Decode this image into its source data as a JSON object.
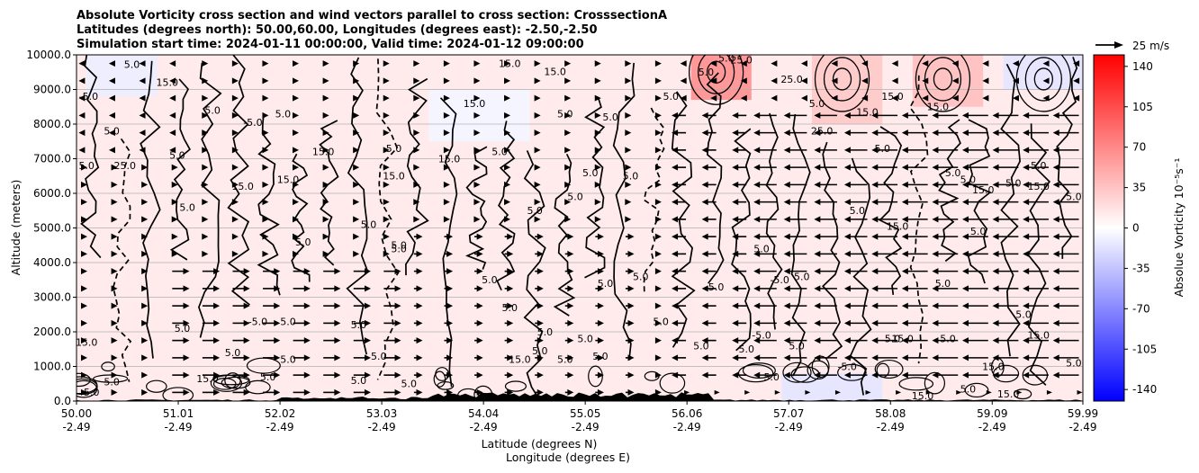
{
  "chart_data": {
    "type": "heatmap",
    "title_lines": [
      "Absolute Vorticity cross section and wind vectors parallel to cross section: CrosssectionA",
      "Latitudes (degrees north): 50.00,60.00, Longitudes (degrees east): -2.50,-2.50",
      "Simulation start time: 2024-01-11 00:00:00, Valid time: 2024-01-12 09:00:00"
    ],
    "ylabel": "Altitude (meters)",
    "xlabel_lines": [
      "Latitude (degrees N)",
      "Longitude (degrees E)"
    ],
    "ylim": [
      0,
      10000
    ],
    "y_ticks": [
      {
        "value": 0,
        "label": "0.0"
      },
      {
        "value": 1000,
        "label": "1000.0"
      },
      {
        "value": 2000,
        "label": "2000.0"
      },
      {
        "value": 3000,
        "label": "3000.0"
      },
      {
        "value": 4000,
        "label": "4000.0"
      },
      {
        "value": 5000,
        "label": "5000.0"
      },
      {
        "value": 6000,
        "label": "6000.0"
      },
      {
        "value": 7000,
        "label": "7000.0"
      },
      {
        "value": 8000,
        "label": "8000.0"
      },
      {
        "value": 9000,
        "label": "9000.0"
      },
      {
        "value": 10000,
        "label": "10000.0"
      }
    ],
    "xlim": [
      50.0,
      59.99
    ],
    "x_ticks": [
      {
        "value": 50.0,
        "lat": "50.00",
        "lon": "-2.49"
      },
      {
        "value": 51.01,
        "lat": "51.01",
        "lon": "-2.49"
      },
      {
        "value": 52.02,
        "lat": "52.02",
        "lon": "-2.49"
      },
      {
        "value": 53.03,
        "lat": "53.03",
        "lon": "-2.49"
      },
      {
        "value": 54.04,
        "lat": "54.04",
        "lon": "-2.49"
      },
      {
        "value": 55.05,
        "lat": "55.05",
        "lon": "-2.49"
      },
      {
        "value": 56.06,
        "lat": "56.06",
        "lon": "-2.49"
      },
      {
        "value": 57.07,
        "lat": "57.07",
        "lon": "-2.49"
      },
      {
        "value": 58.08,
        "lat": "58.08",
        "lon": "-2.49"
      },
      {
        "value": 59.09,
        "lat": "59.09",
        "lon": "-2.49"
      },
      {
        "value": 59.99,
        "lat": "59.99",
        "lon": "-2.49"
      }
    ],
    "grid": "horizontal",
    "colorbar": {
      "label": "Absolue Vorticity 10⁻⁵s⁻¹",
      "range": [
        -150,
        150
      ],
      "ticks": [
        140,
        105,
        70,
        35,
        0,
        -35,
        -70,
        -105,
        -140
      ],
      "colors": {
        "low": "#0000ff",
        "mid": "#ffffff",
        "high": "#ff0000"
      }
    },
    "quiver_key": {
      "label": "25 m/s",
      "speed": 25
    },
    "background_vorticity": [
      {
        "lat_range": [
          50.0,
          59.99
        ],
        "alt_range": [
          0,
          10000
        ],
        "value": 12
      },
      {
        "lat_range": [
          56.1,
          56.7
        ],
        "alt_range": [
          8700,
          10000
        ],
        "value": 60
      },
      {
        "lat_range": [
          57.3,
          58.0
        ],
        "alt_range": [
          8000,
          10000
        ],
        "value": 30
      },
      {
        "lat_range": [
          58.3,
          59.0
        ],
        "alt_range": [
          8500,
          10000
        ],
        "value": 35
      },
      {
        "lat_range": [
          50.1,
          50.8
        ],
        "alt_range": [
          8800,
          10000
        ],
        "value": -10
      },
      {
        "lat_range": [
          53.5,
          54.5
        ],
        "alt_range": [
          7500,
          9000
        ],
        "value": -6
      },
      {
        "lat_range": [
          59.2,
          59.99
        ],
        "alt_range": [
          9000,
          10000
        ],
        "value": -15
      },
      {
        "lat_range": [
          57.0,
          58.0
        ],
        "alt_range": [
          0,
          800
        ],
        "value": -15
      }
    ],
    "contour_labels": [
      {
        "text": "5.0",
        "lat": 50.55,
        "alt": 9620
      },
      {
        "text": "-5.0",
        "lat": 50.12,
        "alt": 8700
      },
      {
        "text": "15.0",
        "lat": 50.9,
        "alt": 9100
      },
      {
        "text": "5.0",
        "lat": 51.35,
        "alt": 8300
      },
      {
        "text": "-5.0",
        "lat": 51.75,
        "alt": 7950
      },
      {
        "text": "5.0",
        "lat": 52.05,
        "alt": 8200
      },
      {
        "text": "5.0",
        "lat": 51.0,
        "alt": 7000
      },
      {
        "text": "15.0",
        "lat": 52.45,
        "alt": 7100
      },
      {
        "text": "15.0",
        "lat": 52.1,
        "alt": 6300
      },
      {
        "text": "15.0",
        "lat": 51.65,
        "alt": 6100
      },
      {
        "text": "5.0",
        "lat": 50.35,
        "alt": 7700
      },
      {
        "text": "25.0",
        "lat": 50.48,
        "alt": 6700
      },
      {
        "text": "5.0",
        "lat": 50.1,
        "alt": 6700
      },
      {
        "text": "15.0",
        "lat": 53.7,
        "alt": 6900
      },
      {
        "text": "5.0",
        "lat": 53.15,
        "alt": 7200
      },
      {
        "text": "15.0",
        "lat": 53.15,
        "alt": 6400
      },
      {
        "text": "5.0",
        "lat": 51.1,
        "alt": 5500
      },
      {
        "text": "5.0",
        "lat": 52.9,
        "alt": 5000
      },
      {
        "text": "5.0",
        "lat": 52.25,
        "alt": 4500
      },
      {
        "text": "5.0",
        "lat": 53.2,
        "alt": 4400
      },
      {
        "text": "5.0",
        "lat": 54.55,
        "alt": 5400
      },
      {
        "text": "5.0",
        "lat": 54.2,
        "alt": 7100
      },
      {
        "text": "15.0",
        "lat": 53.95,
        "alt": 8500
      },
      {
        "text": "5.0",
        "lat": 54.85,
        "alt": 8200
      },
      {
        "text": "5.0",
        "lat": 55.3,
        "alt": 8100
      },
      {
        "text": "15.0",
        "lat": 54.3,
        "alt": 9650
      },
      {
        "text": "15.0",
        "lat": 54.75,
        "alt": 9420
      },
      {
        "text": "5.0",
        "lat": 55.1,
        "alt": 6500
      },
      {
        "text": "5.0",
        "lat": 54.95,
        "alt": 5800
      },
      {
        "text": "5.0",
        "lat": 55.5,
        "alt": 6400
      },
      {
        "text": "5.0",
        "lat": 56.45,
        "alt": 9800
      },
      {
        "text": "25.0",
        "lat": 56.6,
        "alt": 9750
      },
      {
        "text": "5.0",
        "lat": 56.25,
        "alt": 9400
      },
      {
        "text": "5.0",
        "lat": 55.9,
        "alt": 8700
      },
      {
        "text": "25.0",
        "lat": 57.1,
        "alt": 9200
      },
      {
        "text": "5.0",
        "lat": 57.35,
        "alt": 8500
      },
      {
        "text": "25.0",
        "lat": 57.4,
        "alt": 7700
      },
      {
        "text": "15.0",
        "lat": 57.85,
        "alt": 8250
      },
      {
        "text": "15.0",
        "lat": 58.1,
        "alt": 8700
      },
      {
        "text": "5.0",
        "lat": 58.0,
        "alt": 7200
      },
      {
        "text": "15.0",
        "lat": 58.55,
        "alt": 8400
      },
      {
        "text": "5.0",
        "lat": 59.55,
        "alt": 6700
      },
      {
        "text": "5.0",
        "lat": 58.7,
        "alt": 6500
      },
      {
        "text": "5.0",
        "lat": 58.85,
        "alt": 6300
      },
      {
        "text": "15.0",
        "lat": 59.0,
        "alt": 6000
      },
      {
        "text": "5.0",
        "lat": 59.3,
        "alt": 6200
      },
      {
        "text": "15.0",
        "lat": 59.55,
        "alt": 6100
      },
      {
        "text": "5.0",
        "lat": 59.9,
        "alt": 5800
      },
      {
        "text": "15.0",
        "lat": 58.15,
        "alt": 4950
      },
      {
        "text": "5.0",
        "lat": 58.95,
        "alt": 4800
      },
      {
        "text": "5.0",
        "lat": 57.75,
        "alt": 5400
      },
      {
        "text": "5.0",
        "lat": 58.6,
        "alt": 3300
      },
      {
        "text": "5.0",
        "lat": 59.4,
        "alt": 2400
      },
      {
        "text": "-5.0",
        "lat": 56.98,
        "alt": 3400
      },
      {
        "text": "5.0",
        "lat": 57.2,
        "alt": 3500
      },
      {
        "text": "5.0",
        "lat": 56.35,
        "alt": 3200
      },
      {
        "text": "5.0",
        "lat": 56.8,
        "alt": 4300
      },
      {
        "text": "5.0",
        "lat": 55.25,
        "alt": 3300
      },
      {
        "text": "5.0",
        "lat": 55.6,
        "alt": 3500
      },
      {
        "text": "5.0",
        "lat": 54.1,
        "alt": 3400
      },
      {
        "text": "5.0",
        "lat": 53.2,
        "alt": 4300
      },
      {
        "text": "5.0",
        "lat": 54.3,
        "alt": 2600
      },
      {
        "text": "-5.0",
        "lat": 51.8,
        "alt": 2200
      },
      {
        "text": "5.0",
        "lat": 52.1,
        "alt": 2200
      },
      {
        "text": "5.0",
        "lat": 52.8,
        "alt": 2100
      },
      {
        "text": "15.0",
        "lat": 50.1,
        "alt": 1600
      },
      {
        "text": "5.0",
        "lat": 51.05,
        "alt": 2000
      },
      {
        "text": "5.0",
        "lat": 51.55,
        "alt": 1300
      },
      {
        "text": "5.0",
        "lat": 52.1,
        "alt": 1100
      },
      {
        "text": "5.0",
        "lat": 53.0,
        "alt": 1200
      },
      {
        "text": "5.0",
        "lat": 54.65,
        "alt": 1900
      },
      {
        "text": "5.0",
        "lat": 55.05,
        "alt": 1700
      },
      {
        "text": "5.0",
        "lat": 55.2,
        "alt": 1200
      },
      {
        "text": "5.0",
        "lat": 55.8,
        "alt": 2200
      },
      {
        "text": "5.0",
        "lat": 56.2,
        "alt": 1500
      },
      {
        "text": "5.0",
        "lat": 56.65,
        "alt": 1400
      },
      {
        "text": "-5.0",
        "lat": 56.8,
        "alt": 1800
      },
      {
        "text": "5.0",
        "lat": 57.15,
        "alt": 1500
      },
      {
        "text": "5.0",
        "lat": 58.1,
        "alt": 1700
      },
      {
        "text": "15.0",
        "lat": 58.2,
        "alt": 1700
      },
      {
        "text": "5.0",
        "lat": 58.65,
        "alt": 1700
      },
      {
        "text": "15.0",
        "lat": 59.55,
        "alt": 1800
      },
      {
        "text": "15.0",
        "lat": 59.1,
        "alt": 900
      },
      {
        "text": "5.0",
        "lat": 59.9,
        "alt": 1000
      },
      {
        "text": "15.0",
        "lat": 58.4,
        "alt": 50
      },
      {
        "text": "15.0",
        "lat": 59.25,
        "alt": 100
      },
      {
        "text": "5.0",
        "lat": 58.85,
        "alt": 250
      },
      {
        "text": "5.0",
        "lat": 54.85,
        "alt": 1100
      },
      {
        "text": "15.0",
        "lat": 54.4,
        "alt": 1100
      },
      {
        "text": "5.0",
        "lat": 54.6,
        "alt": 1350
      },
      {
        "text": "15.0",
        "lat": 51.3,
        "alt": 550
      },
      {
        "text": "5.0",
        "lat": 51.9,
        "alt": 600
      },
      {
        "text": "5.0",
        "lat": 50.35,
        "alt": 450
      },
      {
        "text": "5.0",
        "lat": 50.15,
        "alt": 150
      },
      {
        "text": "5.0",
        "lat": 56.9,
        "alt": 600
      },
      {
        "text": "-5.0",
        "lat": 57.65,
        "alt": 900
      },
      {
        "text": "5.0",
        "lat": 52.8,
        "alt": 500
      },
      {
        "text": "5.0",
        "lat": 53.3,
        "alt": 400
      }
    ],
    "vector_field": {
      "columns_lat_start": 50.0,
      "columns_lat_step": 0.3,
      "rows_alt_start": 250,
      "rows_alt_step": 500,
      "regions": [
        {
          "lat_range": [
            50.0,
            56.0
          ],
          "alt_range": [
            0,
            10000
          ],
          "u": 2
        },
        {
          "lat_range": [
            50.9,
            53.2
          ],
          "alt_range": [
            0,
            4000
          ],
          "u": 6
        },
        {
          "lat_range": [
            53.2,
            55.5
          ],
          "alt_range": [
            0,
            5000
          ],
          "u": 3
        },
        {
          "lat_range": [
            56.0,
            56.9
          ],
          "alt_range": [
            500,
            8500
          ],
          "u": -5
        },
        {
          "lat_range": [
            56.9,
            57.9
          ],
          "alt_range": [
            500,
            8500
          ],
          "u": -8
        },
        {
          "lat_range": [
            57.9,
            59.99
          ],
          "alt_range": [
            500,
            8500
          ],
          "u": -9
        },
        {
          "lat_range": [
            56.0,
            59.99
          ],
          "alt_range": [
            8500,
            10000
          ],
          "u": -2
        },
        {
          "lat_range": [
            50.0,
            51.0
          ],
          "alt_range": [
            7000,
            10000
          ],
          "u": -1
        }
      ]
    }
  }
}
